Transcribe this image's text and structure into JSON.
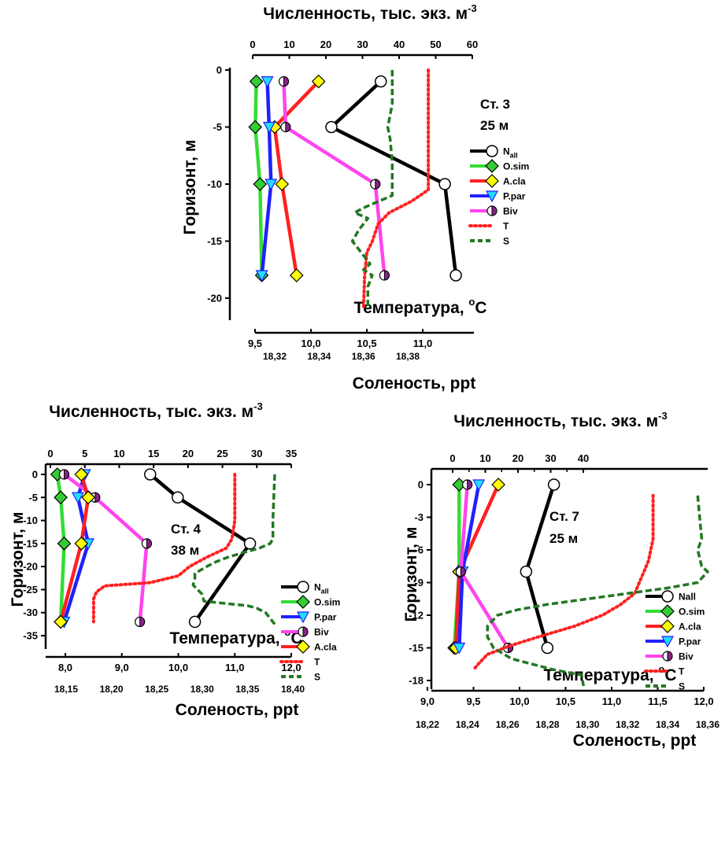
{
  "chart_data": [
    {
      "type": "line",
      "axes": {
        "top": {
          "label": "Численность, тыс. экз. м",
          "sup": "-3",
          "range": [
            0,
            60
          ],
          "ticks": [
            "0",
            "10",
            "20",
            "30",
            "40",
            "50",
            "60"
          ]
        },
        "left": {
          "label": "Горизонт, м",
          "range": [
            -21,
            0
          ],
          "ticks": [
            "0",
            "-5",
            "-10",
            "-15",
            "-20"
          ]
        },
        "temp": {
          "label": "Температура, ",
          "sup": "o",
          "unit": "C",
          "range": [
            9.5,
            11.3
          ],
          "ticks": [
            "9,5",
            "10,0",
            "10,5",
            "11,0"
          ]
        },
        "sal": {
          "label": "Соленость, ppt",
          "range": [
            18.3,
            18.4
          ],
          "ticks": [
            "18,32",
            "18,34",
            "18,36",
            "18,38"
          ]
        }
      },
      "annotation": [
        "Ст. 3",
        "25 м"
      ],
      "legend": [
        "N",
        "O.sim",
        "A.cla",
        "P.par",
        "Biv",
        "T",
        "S"
      ],
      "legend_sub": "all",
      "series": [
        {
          "name": "N_all",
          "axis": "top",
          "color": "#000000",
          "marker": "circle",
          "points": [
            [
              35,
              -1
            ],
            [
              21.5,
              -5
            ],
            [
              52.5,
              -10
            ],
            [
              55.5,
              -18
            ]
          ]
        },
        {
          "name": "O.sim",
          "axis": "top",
          "color": "#33dd33",
          "marker": "diamond",
          "points": [
            [
              1,
              -1
            ],
            [
              0.7,
              -5
            ],
            [
              2,
              -10
            ],
            [
              2.5,
              -18
            ]
          ]
        },
        {
          "name": "A.cla",
          "axis": "top",
          "color": "#ff2020",
          "marker": "diamond",
          "points": [
            [
              18,
              -1
            ],
            [
              6,
              -5
            ],
            [
              8,
              -10
            ],
            [
              12,
              -18
            ]
          ]
        },
        {
          "name": "P.par",
          "axis": "top",
          "color": "#2020ff",
          "marker": "triangle",
          "points": [
            [
              4,
              -1
            ],
            [
              4.5,
              -5
            ],
            [
              5,
              -10
            ],
            [
              2.5,
              -18
            ]
          ]
        },
        {
          "name": "Biv",
          "axis": "top",
          "color": "#ff44ee",
          "marker": "halfcircle",
          "points": [
            [
              8.5,
              -1
            ],
            [
              9,
              -5
            ],
            [
              33.5,
              -10
            ],
            [
              36,
              -18
            ]
          ]
        },
        {
          "name": "T",
          "axis": "temp",
          "color": "#ff2020",
          "style": "dotted",
          "points": [
            [
              11.05,
              0
            ],
            [
              11.05,
              -3
            ],
            [
              11.05,
              -6
            ],
            [
              11.05,
              -9
            ],
            [
              11.05,
              -10.5
            ],
            [
              10.9,
              -11.5
            ],
            [
              10.7,
              -12.5
            ],
            [
              10.6,
              -13.5
            ],
            [
              10.55,
              -15
            ],
            [
              10.5,
              -16
            ],
            [
              10.48,
              -18
            ],
            [
              10.47,
              -21
            ]
          ]
        },
        {
          "name": "S",
          "axis": "sal",
          "color": "#227722",
          "style": "dashed",
          "points": [
            [
              18.373,
              0
            ],
            [
              18.373,
              -3
            ],
            [
              18.371,
              -5
            ],
            [
              18.372,
              -6
            ],
            [
              18.373,
              -8
            ],
            [
              18.373,
              -10
            ],
            [
              18.373,
              -11
            ],
            [
              18.361,
              -12
            ],
            [
              18.356,
              -12.5
            ],
            [
              18.362,
              -13
            ],
            [
              18.358,
              -14
            ],
            [
              18.355,
              -15
            ],
            [
              18.359,
              -16
            ],
            [
              18.363,
              -17
            ],
            [
              18.36,
              -17.5
            ],
            [
              18.364,
              -18
            ],
            [
              18.362,
              -19
            ],
            [
              18.362,
              -21
            ]
          ]
        }
      ]
    },
    {
      "type": "line",
      "axes": {
        "top": {
          "label": "Численность, тыс. экз. м",
          "sup": "-3",
          "range": [
            0,
            35
          ],
          "ticks": [
            "0",
            "5",
            "10",
            "15",
            "20",
            "25",
            "30",
            "35"
          ]
        },
        "left": {
          "label": "Горизонт, м",
          "range": [
            -35,
            0
          ],
          "ticks": [
            "0",
            "-5",
            "-10",
            "-15",
            "-20",
            "-25",
            "-30",
            "-35"
          ]
        },
        "temp": {
          "label": "Температура, ",
          "sup": "o",
          "unit": "C",
          "range": [
            8,
            12
          ],
          "ticks": [
            "8,0",
            "9,0",
            "10,0",
            "11,0",
            "12,0"
          ]
        },
        "sal": {
          "label": "Соленость, ppt",
          "range": [
            18.15,
            18.4
          ],
          "ticks": [
            "18,15",
            "18,20",
            "18,25",
            "18,30",
            "18,35",
            "18,40"
          ]
        }
      },
      "annotation": [
        "Ст. 4",
        "38 м"
      ],
      "legend": [
        "N",
        "O.sim",
        "P.par",
        "Biv",
        "A.cla",
        "T",
        "S"
      ],
      "legend_sub": "all",
      "series": [
        {
          "name": "N_all",
          "axis": "top",
          "color": "#000000",
          "marker": "circle",
          "points": [
            [
              14.5,
              0
            ],
            [
              18.5,
              -5
            ],
            [
              29,
              -15
            ],
            [
              21,
              -32
            ]
          ]
        },
        {
          "name": "O.sim",
          "axis": "top",
          "color": "#33dd33",
          "marker": "diamond",
          "points": [
            [
              1,
              0
            ],
            [
              1.5,
              -5
            ],
            [
              2,
              -15
            ],
            [
              1.5,
              -32
            ]
          ]
        },
        {
          "name": "P.par",
          "axis": "top",
          "color": "#2020ff",
          "marker": "triangle",
          "points": [
            [
              5,
              0
            ],
            [
              4,
              -5
            ],
            [
              5.5,
              -15
            ],
            [
              2,
              -32
            ]
          ]
        },
        {
          "name": "Biv",
          "axis": "top",
          "color": "#ff44ee",
          "marker": "halfcircle",
          "points": [
            [
              2,
              0
            ],
            [
              6.5,
              -5
            ],
            [
              14,
              -15
            ],
            [
              13,
              -32
            ]
          ]
        },
        {
          "name": "A.cla",
          "axis": "top",
          "color": "#ff2020",
          "marker": "diamond",
          "points": [
            [
              4.5,
              0
            ],
            [
              5.5,
              -5
            ],
            [
              4.5,
              -15
            ],
            [
              1.5,
              -32
            ]
          ]
        },
        {
          "name": "T",
          "axis": "temp",
          "color": "#ff2020",
          "style": "dotted",
          "points": [
            [
              11,
              0
            ],
            [
              11,
              -5
            ],
            [
              11,
              -10
            ],
            [
              10.95,
              -14
            ],
            [
              10.85,
              -16
            ],
            [
              10.5,
              -18
            ],
            [
              10.2,
              -20
            ],
            [
              10,
              -22
            ],
            [
              9.5,
              -23.5
            ],
            [
              8.7,
              -24.2
            ],
            [
              8.55,
              -25.5
            ],
            [
              8.5,
              -27
            ],
            [
              8.5,
              -32
            ]
          ]
        },
        {
          "name": "S",
          "axis": "sal",
          "color": "#227722",
          "style": "dashed",
          "points": [
            [
              18.38,
              0
            ],
            [
              18.379,
              -5
            ],
            [
              18.378,
              -10
            ],
            [
              18.378,
              -14
            ],
            [
              18.375,
              -15
            ],
            [
              18.363,
              -16
            ],
            [
              18.345,
              -17
            ],
            [
              18.328,
              -18
            ],
            [
              18.315,
              -19
            ],
            [
              18.305,
              -20
            ],
            [
              18.292,
              -21.5
            ],
            [
              18.292,
              -22.5
            ],
            [
              18.29,
              -24
            ],
            [
              18.3,
              -26
            ],
            [
              18.302,
              -27.5
            ],
            [
              18.325,
              -28
            ],
            [
              18.35,
              -28.5
            ],
            [
              18.36,
              -29
            ],
            [
              18.37,
              -30
            ],
            [
              18.38,
              -32.5
            ]
          ]
        }
      ]
    },
    {
      "type": "line",
      "axes": {
        "top": {
          "label": "Численность, тыс. экз. м",
          "sup": "-3",
          "range": [
            -5,
            40
          ],
          "ticks": [
            "0",
            "10",
            "20",
            "30",
            "40"
          ]
        },
        "left": {
          "label": "Горизонт, м",
          "range": [
            -18,
            0
          ],
          "ticks": [
            "0",
            "-3",
            "-6",
            "-9",
            "-12",
            "-15",
            "-18"
          ]
        },
        "temp": {
          "label": "Температура, ",
          "sup": "o",
          "unit": "C",
          "range": [
            9,
            12
          ],
          "ticks": [
            "9,0",
            "9,5",
            "10,0",
            "10,5",
            "11,0",
            "11,5",
            "12,0"
          ]
        },
        "sal": {
          "label": "Соленость, ppt",
          "range": [
            18.22,
            18.36
          ],
          "ticks": [
            "18,22",
            "18,24",
            "18,26",
            "18,28",
            "18,30",
            "18,32",
            "18,34",
            "18,36"
          ]
        }
      },
      "annotation": [
        "Ст. 7",
        "25 м"
      ],
      "legend": [
        "Nall",
        "O.sim",
        "A.cla",
        "P.par",
        "Biv",
        "T",
        "S"
      ],
      "legend_sub": "",
      "series": [
        {
          "name": "Nall",
          "axis": "top",
          "color": "#000000",
          "marker": "circle",
          "points": [
            [
              31,
              0
            ],
            [
              22.5,
              -8
            ],
            [
              29,
              -15
            ]
          ]
        },
        {
          "name": "O.sim",
          "axis": "top",
          "color": "#33dd33",
          "marker": "diamond",
          "points": [
            [
              2,
              0
            ],
            [
              2,
              -8
            ],
            [
              0.5,
              -15
            ]
          ]
        },
        {
          "name": "A.cla",
          "axis": "top",
          "color": "#ff2020",
          "marker": "diamond",
          "points": [
            [
              14,
              0
            ],
            [
              2,
              -8
            ],
            [
              1,
              -15
            ]
          ]
        },
        {
          "name": "P.par",
          "axis": "top",
          "color": "#2020ff",
          "marker": "triangle",
          "points": [
            [
              8,
              0
            ],
            [
              3,
              -8
            ],
            [
              2,
              -15
            ]
          ]
        },
        {
          "name": "Biv",
          "axis": "top",
          "color": "#ff44ee",
          "marker": "halfcircle",
          "points": [
            [
              4.5,
              0
            ],
            [
              2.5,
              -8
            ],
            [
              17,
              -15
            ]
          ]
        },
        {
          "name": "T",
          "axis": "temp",
          "color": "#ff2020",
          "style": "dotted",
          "points": [
            [
              11.45,
              -1
            ],
            [
              11.45,
              -3
            ],
            [
              11.45,
              -5
            ],
            [
              11.4,
              -7
            ],
            [
              11.35,
              -8
            ],
            [
              11.3,
              -9
            ],
            [
              11.25,
              -10
            ],
            [
              11.1,
              -11
            ],
            [
              10.9,
              -12
            ],
            [
              10.6,
              -13
            ],
            [
              10.2,
              -14
            ],
            [
              9.9,
              -14.8
            ],
            [
              9.65,
              -15.6
            ],
            [
              9.55,
              -16.5
            ],
            [
              9.5,
              -17
            ]
          ]
        },
        {
          "name": "S",
          "axis": "sal",
          "color": "#227722",
          "style": "dashed",
          "points": [
            [
              18.355,
              -1
            ],
            [
              18.356,
              -3
            ],
            [
              18.357,
              -5
            ],
            [
              18.355,
              -6
            ],
            [
              18.357,
              -7.5
            ],
            [
              18.36,
              -8
            ],
            [
              18.355,
              -9
            ],
            [
              18.34,
              -9.5
            ],
            [
              18.32,
              -10
            ],
            [
              18.3,
              -10.5
            ],
            [
              18.28,
              -11
            ],
            [
              18.265,
              -11.5
            ],
            [
              18.255,
              -12
            ],
            [
              18.25,
              -13
            ],
            [
              18.25,
              -14
            ],
            [
              18.253,
              -15
            ],
            [
              18.262,
              -16
            ],
            [
              18.283,
              -17
            ],
            [
              18.297,
              -17.5
            ],
            [
              18.298,
              -18.5
            ]
          ]
        }
      ]
    }
  ]
}
